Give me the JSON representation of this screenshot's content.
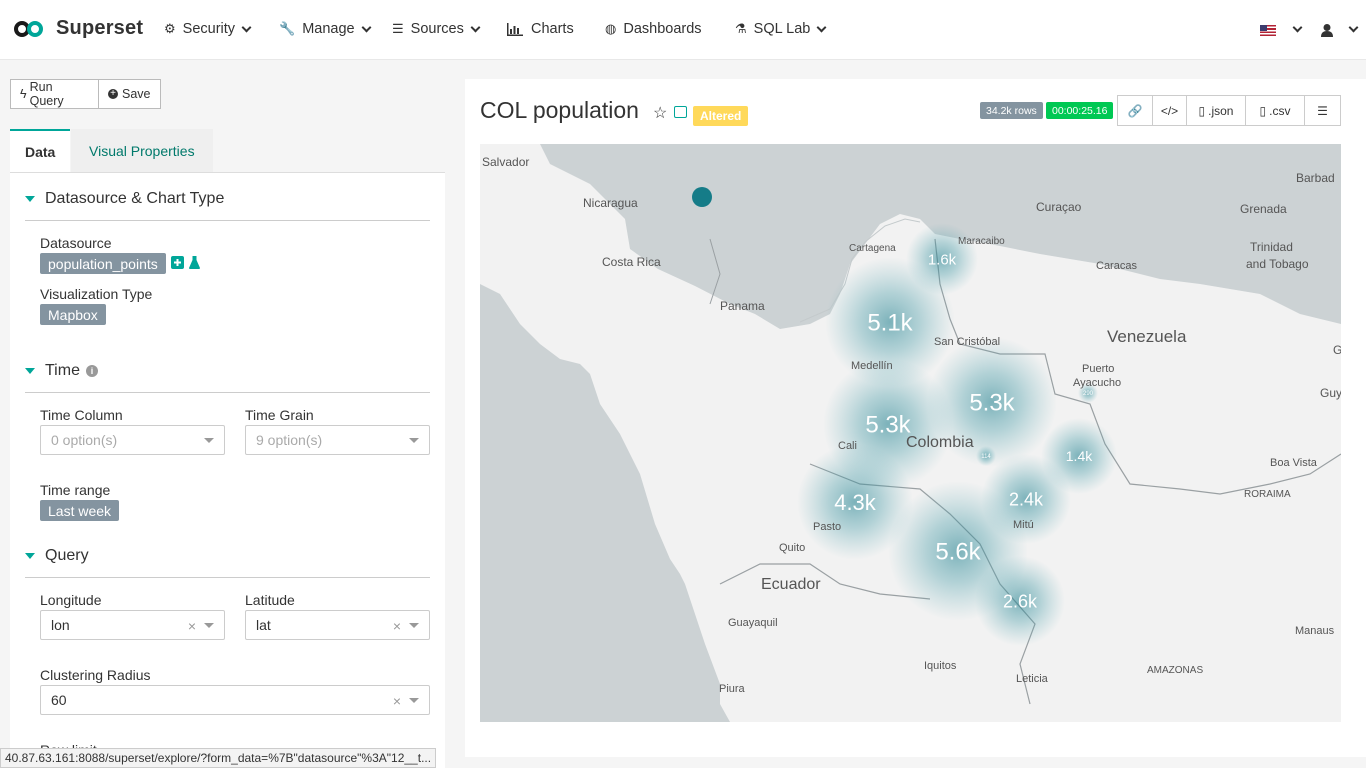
{
  "brand": {
    "name": "Superset"
  },
  "nav": {
    "security": "Security",
    "manage": "Manage",
    "sources": "Sources",
    "charts": "Charts",
    "dashboards": "Dashboards",
    "sql_lab": "SQL Lab"
  },
  "toolbar": {
    "run_query": "Run Query",
    "save": "Save"
  },
  "tabs": {
    "data": "Data",
    "visual_properties": "Visual Properties"
  },
  "sections": {
    "datasource": {
      "title": "Datasource & Chart Type",
      "datasource_label": "Datasource",
      "datasource_value": "population_points",
      "viz_label": "Visualization Type",
      "viz_value": "Mapbox"
    },
    "time": {
      "title": "Time",
      "time_column_label": "Time Column",
      "time_column_placeholder": "0 option(s)",
      "time_grain_label": "Time Grain",
      "time_grain_placeholder": "9 option(s)",
      "time_range_label": "Time range",
      "time_range_value": "Last week"
    },
    "query": {
      "title": "Query",
      "longitude_label": "Longitude",
      "longitude_value": "lon",
      "latitude_label": "Latitude",
      "latitude_value": "lat",
      "clustering_label": "Clustering Radius",
      "clustering_value": "60",
      "row_limit_label": "Row limit"
    }
  },
  "chart": {
    "title": "COL population",
    "altered_label": "Altered",
    "rows_badge": "34.2k rows",
    "time_badge": "00:00:25.16",
    "json_label": ".json",
    "csv_label": ".csv"
  },
  "map": {
    "clusters": [
      {
        "label": "1.6k"
      },
      {
        "label": "5.1k"
      },
      {
        "label": "5.3k"
      },
      {
        "label": "5.3k"
      },
      {
        "label": "1.4k"
      },
      {
        "label": "4.3k"
      },
      {
        "label": "2.4k"
      },
      {
        "label": "5.6k"
      },
      {
        "label": "2.6k"
      },
      {
        "label": "290"
      },
      {
        "label": "114"
      }
    ],
    "places": [
      "Salvador",
      "Nicaragua",
      "Costa Rica",
      "Panama",
      "Cartagena",
      "Maracaibo",
      "Curaçao",
      "Grenada",
      "Barbad",
      "Caracas",
      "Trinidad",
      "and Tobago",
      "Venezuela",
      "San Cristóbal",
      "Puerto",
      "Ayacucho",
      "Medellín",
      "Colombia",
      "Cali",
      "Pasto",
      "Mitú",
      "Quito",
      "Ecuador",
      "Guayaquil",
      "Iquitos",
      "Leticia",
      "Piura",
      "Boa Vista",
      "RORAIMA",
      "Manaus",
      "AMAZONAS",
      "Guy",
      "G"
    ]
  },
  "status_url": "40.87.63.161:8088/superset/explore/?form_data=%7B\"datasource\"%3A\"12__t..."
}
